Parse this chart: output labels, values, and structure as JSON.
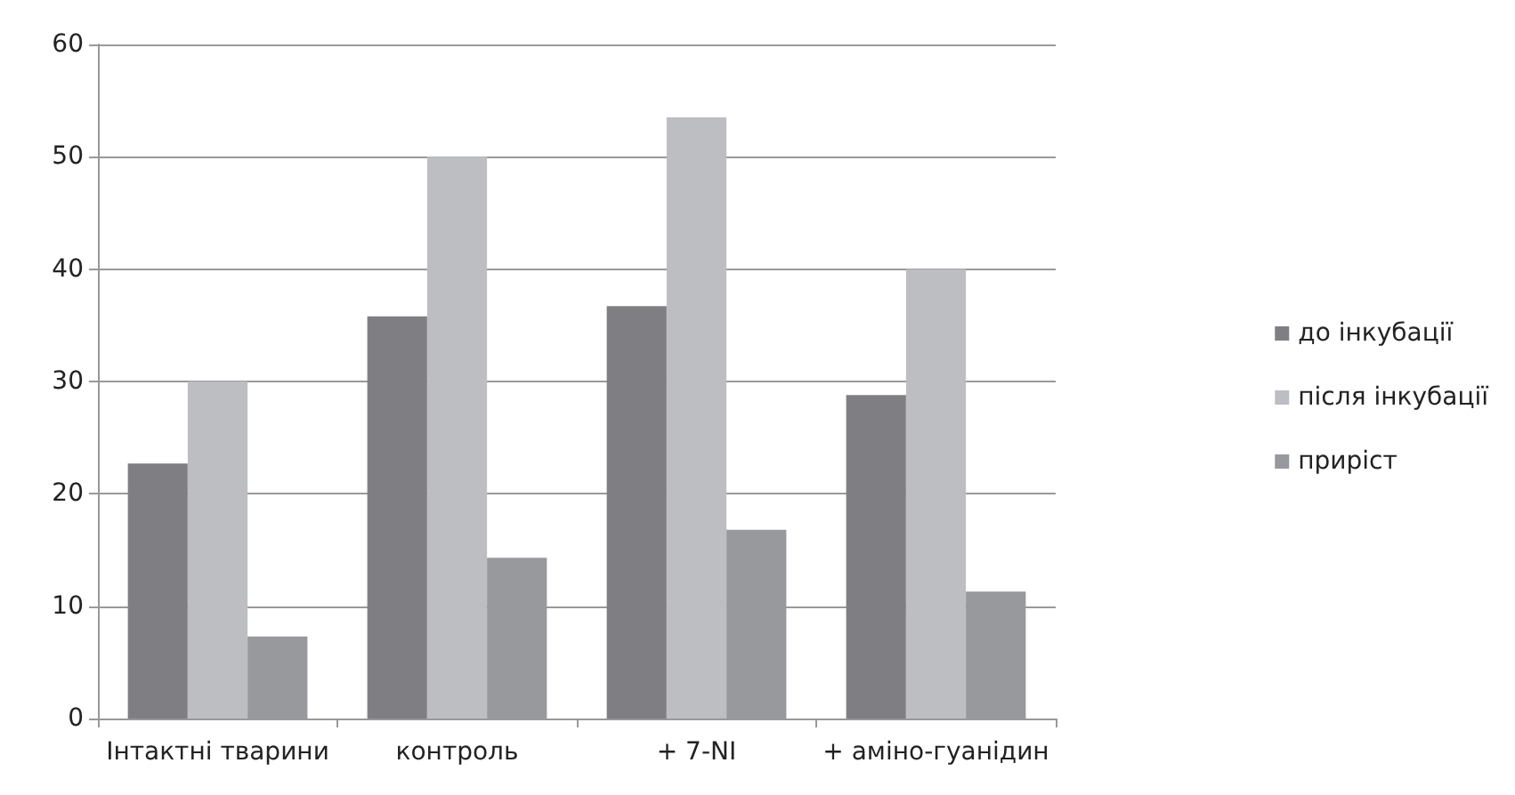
{
  "chart_data": {
    "type": "bar",
    "categories": [
      "Інтактні тварини",
      "контроль",
      "+ 7-NI",
      "+ аміно-гуанідин"
    ],
    "series": [
      {
        "name": "до інкубації",
        "color": "#7f7f83",
        "values": [
          22.7,
          35.8,
          36.7,
          28.8
        ]
      },
      {
        "name": "після інкубації",
        "color": "#bdbec2",
        "values": [
          30,
          50,
          53.5,
          40
        ]
      },
      {
        "name": "приріст",
        "color": "#98999d",
        "values": [
          7.3,
          14.3,
          16.8,
          11.3
        ]
      }
    ],
    "ylim": [
      0,
      60
    ],
    "yticks": [
      0,
      10,
      20,
      30,
      40,
      50,
      60
    ],
    "grid": "y",
    "legend": "right"
  }
}
